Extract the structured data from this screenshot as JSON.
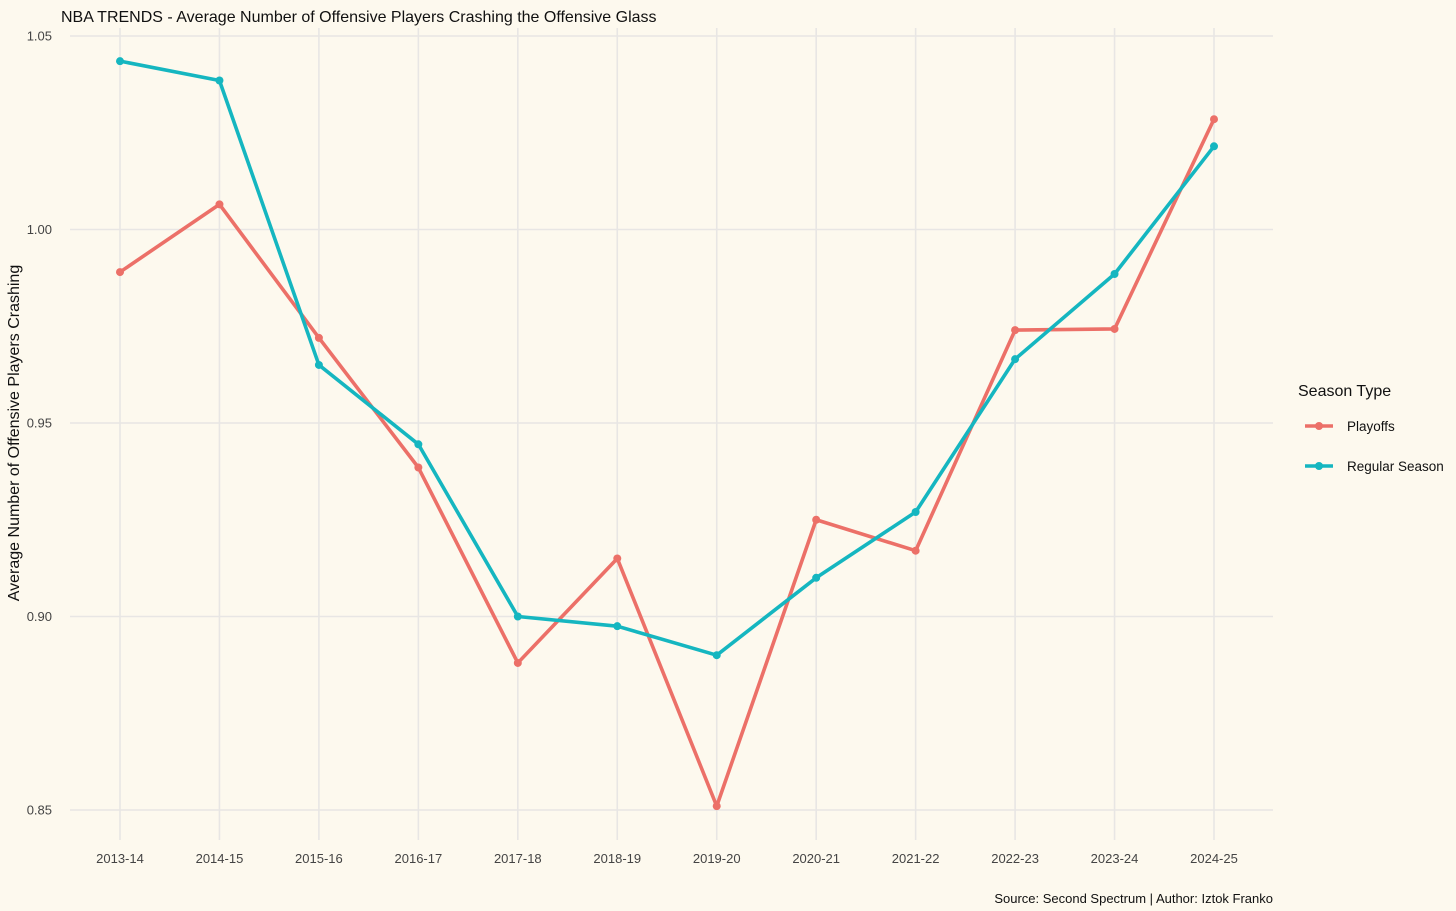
{
  "chart_data": {
    "type": "line",
    "title": "NBA TRENDS - Average Number of Offensive Players Crashing the Offensive Glass",
    "xlabel": "",
    "ylabel": "Average Number of Offensive Players Crashing",
    "caption": "Source: Second Spectrum | Author: Iztok Franko",
    "legend_title": "Season Type",
    "legend_position": "right",
    "grid": true,
    "categories": [
      "2013-14",
      "2014-15",
      "2015-16",
      "2016-17",
      "2017-18",
      "2018-19",
      "2019-20",
      "2020-21",
      "2021-22",
      "2022-23",
      "2023-24",
      "2024-25"
    ],
    "ylim": [
      0.84,
      1.057
    ],
    "yticks": [
      0.85,
      0.9,
      0.95,
      1.0,
      1.05
    ],
    "ytick_labels": [
      "0.85",
      "0.90",
      "0.95",
      "1.00",
      "1.05"
    ],
    "series": [
      {
        "name": "Playoffs",
        "color": "#ec7068",
        "values": [
          0.989,
          1.0065,
          0.972,
          0.9385,
          0.888,
          0.915,
          0.851,
          0.925,
          0.917,
          0.974,
          0.9743,
          1.0285
        ]
      },
      {
        "name": "Regular Season",
        "color": "#15b6c0",
        "values": [
          1.0435,
          1.0385,
          0.965,
          0.9445,
          0.9,
          0.8975,
          0.89,
          0.91,
          0.927,
          0.9665,
          0.9885,
          1.0215
        ]
      }
    ]
  },
  "colors": {
    "background": "#fdf9ee",
    "grid": "#e8e6e4",
    "text": "#222222",
    "tick_text": "#444444"
  }
}
